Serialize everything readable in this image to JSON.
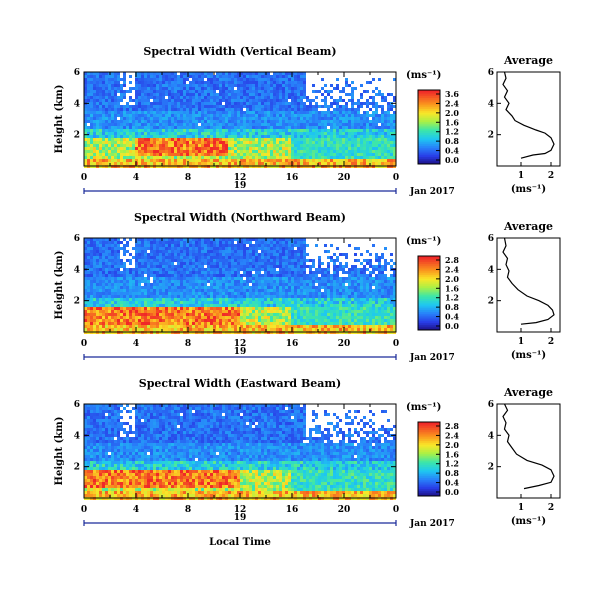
{
  "chart_data": [
    {
      "type": "heatmap",
      "title": "Spectral Width (Vertical Beam)",
      "ylabel": "Height (km)",
      "y_ticks": [
        "6",
        "4",
        "2"
      ],
      "x_ticks": [
        "0",
        "4",
        "8",
        "12",
        "16",
        "20",
        "0"
      ],
      "date_day": "19",
      "date_label": "Jan 2017",
      "xlim": [
        0,
        24
      ],
      "ylim": [
        0,
        6
      ],
      "colorbar": {
        "unit": "(ms⁻¹)",
        "ticks": [
          "3.6",
          "2.4",
          "2.0",
          "1.6",
          "1.2",
          "0.8",
          "0.4",
          "0.0"
        ],
        "range": [
          0,
          3.6
        ]
      },
      "features": {
        "hot_core": {
          "x_start": 4,
          "x_end": 11,
          "y_top": 1.7,
          "y_bottom": 0.6,
          "value": 3.4
        },
        "boundary_layer_top_km": 2.0,
        "missing_upper_right": true
      },
      "profile": {
        "title": "Average",
        "xlabel": "(ms⁻¹)",
        "x_ticks": [
          "1",
          "2"
        ],
        "y_ticks": [
          "6",
          "4",
          "2"
        ],
        "xlim": [
          0.2,
          2.3
        ],
        "ylim": [
          0,
          6
        ],
        "points": [
          [
            0.45,
            6.0
          ],
          [
            0.5,
            5.6
          ],
          [
            0.4,
            5.2
          ],
          [
            0.55,
            4.8
          ],
          [
            0.45,
            4.4
          ],
          [
            0.6,
            4.0
          ],
          [
            0.5,
            3.6
          ],
          [
            0.7,
            3.2
          ],
          [
            0.8,
            2.9
          ],
          [
            1.1,
            2.6
          ],
          [
            1.5,
            2.3
          ],
          [
            1.8,
            2.1
          ],
          [
            2.0,
            1.8
          ],
          [
            2.1,
            1.4
          ],
          [
            2.0,
            1.0
          ],
          [
            1.8,
            0.8
          ],
          [
            1.4,
            0.7
          ],
          [
            1.0,
            0.5
          ]
        ]
      }
    },
    {
      "type": "heatmap",
      "title": "Spectral Width (Northward Beam)",
      "ylabel": "Height (km)",
      "y_ticks": [
        "6",
        "4",
        "2"
      ],
      "x_ticks": [
        "0",
        "4",
        "8",
        "12",
        "16",
        "20",
        "0"
      ],
      "date_day": "19",
      "date_label": "Jan 2017",
      "xlim": [
        0,
        24
      ],
      "ylim": [
        0,
        6
      ],
      "colorbar": {
        "unit": "(ms⁻¹)",
        "ticks": [
          "2.8",
          "2.4",
          "2.0",
          "1.6",
          "1.2",
          "0.8",
          "0.4",
          "0.0"
        ],
        "range": [
          0,
          2.8
        ]
      },
      "features": {
        "hot_core": {
          "x_start": 0,
          "x_end": 12,
          "y_top": 1.5,
          "y_bottom": 0.5,
          "value": 2.6
        },
        "boundary_layer_top_km": 1.8,
        "missing_upper_right": true
      },
      "profile": {
        "title": "Average",
        "xlabel": "(ms⁻¹)",
        "x_ticks": [
          "1",
          "2"
        ],
        "y_ticks": [
          "6",
          "4",
          "2"
        ],
        "xlim": [
          0.2,
          2.3
        ],
        "ylim": [
          0,
          6
        ],
        "points": [
          [
            0.45,
            6.0
          ],
          [
            0.5,
            5.5
          ],
          [
            0.4,
            5.1
          ],
          [
            0.55,
            4.7
          ],
          [
            0.5,
            4.3
          ],
          [
            0.6,
            3.9
          ],
          [
            0.55,
            3.5
          ],
          [
            0.7,
            3.1
          ],
          [
            0.9,
            2.7
          ],
          [
            1.2,
            2.3
          ],
          [
            1.6,
            2.0
          ],
          [
            1.9,
            1.7
          ],
          [
            2.05,
            1.4
          ],
          [
            2.1,
            1.1
          ],
          [
            1.9,
            0.8
          ],
          [
            1.5,
            0.6
          ],
          [
            1.0,
            0.5
          ]
        ]
      }
    },
    {
      "type": "heatmap",
      "title": "Spectral Width (Eastward Beam)",
      "ylabel": "Height (km)",
      "y_ticks": [
        "6",
        "4",
        "2"
      ],
      "x_ticks": [
        "0",
        "4",
        "8",
        "12",
        "16",
        "20",
        "0"
      ],
      "date_day": "19",
      "date_label": "Jan 2017",
      "xlabel": "Local Time",
      "xlim": [
        0,
        24
      ],
      "ylim": [
        0,
        6
      ],
      "colorbar": {
        "unit": "(ms⁻¹)",
        "ticks": [
          "2.8",
          "2.4",
          "2.0",
          "1.6",
          "1.2",
          "0.8",
          "0.4",
          "0.0"
        ],
        "range": [
          0,
          2.8
        ]
      },
      "features": {
        "hot_core": {
          "x_start": 0,
          "x_end": 12,
          "y_top": 1.7,
          "y_bottom": 0.6,
          "value": 2.6
        },
        "boundary_layer_top_km": 2.0,
        "missing_upper_right": true
      },
      "profile": {
        "title": "Average",
        "xlabel": "(ms⁻¹)",
        "x_ticks": [
          "1",
          "2"
        ],
        "y_ticks": [
          "6",
          "4",
          "2"
        ],
        "xlim": [
          0.2,
          2.3
        ],
        "ylim": [
          0,
          6
        ],
        "points": [
          [
            0.45,
            6.0
          ],
          [
            0.55,
            5.6
          ],
          [
            0.4,
            5.2
          ],
          [
            0.5,
            4.8
          ],
          [
            0.45,
            4.4
          ],
          [
            0.6,
            4.0
          ],
          [
            0.55,
            3.6
          ],
          [
            0.7,
            3.2
          ],
          [
            0.85,
            2.8
          ],
          [
            1.2,
            2.4
          ],
          [
            1.7,
            2.1
          ],
          [
            2.0,
            1.8
          ],
          [
            2.1,
            1.4
          ],
          [
            2.0,
            1.0
          ],
          [
            1.6,
            0.8
          ],
          [
            1.1,
            0.6
          ]
        ]
      }
    }
  ]
}
